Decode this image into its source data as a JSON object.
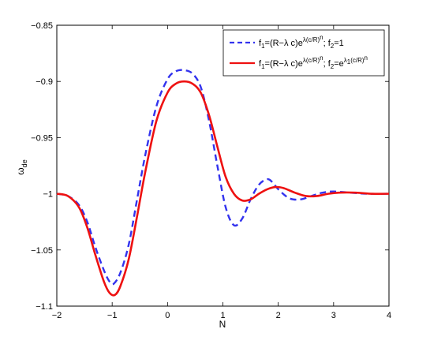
{
  "chart_data": {
    "type": "line",
    "title": "",
    "xlabel": "N",
    "ylabel": "ω_de",
    "xlim": [
      -2,
      4
    ],
    "ylim": [
      -1.1,
      -0.85
    ],
    "xticks": [
      -2,
      -1,
      0,
      1,
      2,
      3,
      4
    ],
    "xtick_labels": [
      "−2",
      "−1",
      "0",
      "1",
      "2",
      "3",
      "4"
    ],
    "yticks": [
      -1.1,
      -1.05,
      -1,
      -0.95,
      -0.9,
      -0.85
    ],
    "ytick_labels": [
      "−1.1",
      "−1.05",
      "−1",
      "−0.95",
      "−0.9",
      "−0.85"
    ],
    "grid": false,
    "legend_position": "top-right",
    "series": [
      {
        "name": "f1=(R−λ c)e^λ(c/R)^n; f2=1",
        "style": "dashed",
        "color": "#3333ee",
        "x": [
          -2.0,
          -1.8,
          -1.6,
          -1.45,
          -1.3,
          -1.15,
          -1.05,
          -0.97,
          -0.85,
          -0.7,
          -0.55,
          -0.4,
          -0.2,
          0.0,
          0.15,
          0.3,
          0.45,
          0.6,
          0.75,
          0.9,
          1.05,
          1.2,
          1.35,
          1.5,
          1.65,
          1.8,
          1.9,
          2.0,
          2.2,
          2.4,
          2.6,
          2.8,
          3.0,
          3.3,
          3.6,
          4.0
        ],
        "y": [
          -1.0,
          -1.002,
          -1.01,
          -1.025,
          -1.048,
          -1.068,
          -1.078,
          -1.08,
          -1.07,
          -1.045,
          -1.005,
          -0.965,
          -0.922,
          -0.898,
          -0.891,
          -0.89,
          -0.893,
          -0.905,
          -0.935,
          -0.975,
          -1.012,
          -1.028,
          -1.022,
          -1.005,
          -0.992,
          -0.987,
          -0.99,
          -0.996,
          -1.004,
          -1.005,
          -1.002,
          -0.999,
          -0.998,
          -0.999,
          -1.0,
          -1.0
        ]
      },
      {
        "name": "f1=(R−λ c)e^λ(c/R)^n; f2=e^λ1(c/R)^n",
        "style": "solid",
        "color": "#ee1111",
        "x": [
          -2.0,
          -1.8,
          -1.6,
          -1.45,
          -1.3,
          -1.15,
          -1.05,
          -0.95,
          -0.85,
          -0.7,
          -0.55,
          -0.4,
          -0.2,
          0.0,
          0.15,
          0.3,
          0.45,
          0.6,
          0.75,
          0.9,
          1.05,
          1.2,
          1.35,
          1.5,
          1.65,
          1.8,
          1.95,
          2.1,
          2.3,
          2.5,
          2.7,
          2.9,
          3.1,
          3.4,
          3.7,
          4.0
        ],
        "y": [
          -1.0,
          -1.002,
          -1.012,
          -1.03,
          -1.055,
          -1.078,
          -1.088,
          -1.09,
          -1.082,
          -1.058,
          -1.02,
          -0.98,
          -0.935,
          -0.91,
          -0.902,
          -0.9,
          -0.902,
          -0.91,
          -0.93,
          -0.958,
          -0.985,
          -1.0,
          -1.006,
          -1.005,
          -1.0,
          -0.996,
          -0.994,
          -0.995,
          -0.999,
          -1.002,
          -1.002,
          -1.0,
          -0.999,
          -0.999,
          -1.0,
          -1.0
        ]
      }
    ]
  },
  "legend": {
    "entry1": {
      "f1_prefix": "f",
      "f1_sub": "1",
      "f1_body": "=(R−λ c)e",
      "f1_exp": "λ(c/R)",
      "f1_exp_n": "n",
      "sep": "; f",
      "f2_sub": "2",
      "f2_body": "=1"
    },
    "entry2": {
      "f1_prefix": "f",
      "f1_sub": "1",
      "f1_body": "=(R−λ c)e",
      "f1_exp": "λ(c/R)",
      "f1_exp_n": "n",
      "sep": "; f",
      "f2_sub": "2",
      "f2_body": "=e",
      "f2_exp": "λ",
      "f2_exp_sub": "1",
      "f2_exp_tail": "(c/R)",
      "f2_exp_n": "n"
    }
  },
  "ylabel_parts": {
    "main": "ω",
    "sub": "de"
  }
}
